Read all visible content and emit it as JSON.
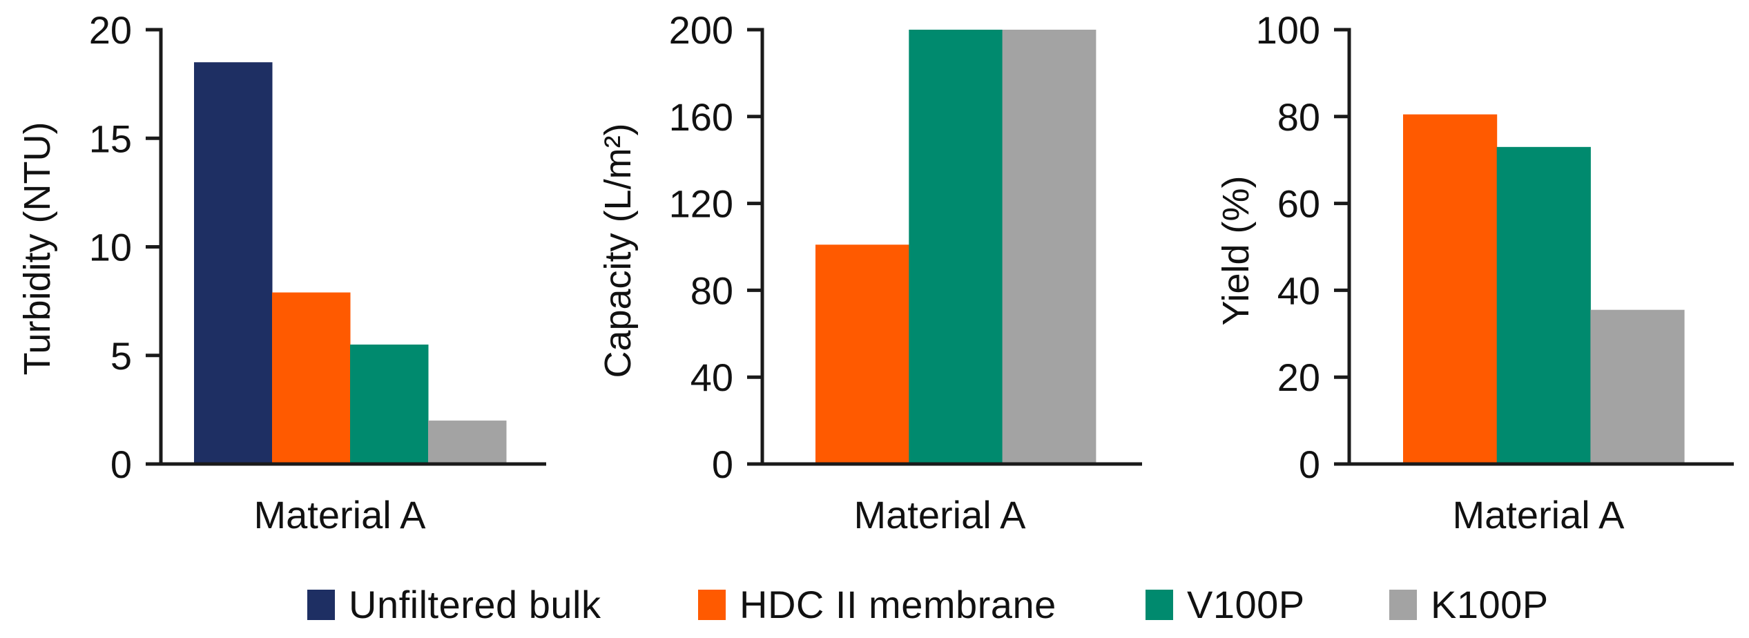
{
  "colors": {
    "unfiltered_bulk": "#1e2f63",
    "hdc_ii_membrane": "#ff5a00",
    "v100p": "#008a6e",
    "k100p": "#a3a3a3",
    "axis": "#1a1a1a"
  },
  "legend": {
    "items": [
      {
        "label": "Unfiltered bulk",
        "color": "#1e2f63"
      },
      {
        "label": "HDC II membrane",
        "color": "#ff5a00"
      },
      {
        "label": "V100P",
        "color": "#008a6e"
      },
      {
        "label": "K100P",
        "color": "#a3a3a3"
      }
    ]
  },
  "chart_data": [
    {
      "type": "bar",
      "title": "",
      "ylabel": "Turbidity (NTU)",
      "xlabel": "",
      "categories": [
        "Material A"
      ],
      "ylim": [
        0,
        20
      ],
      "yticks": [
        0,
        5,
        10,
        15,
        20
      ],
      "grid": false,
      "legend_position": "bottom",
      "series": [
        {
          "name": "Unfiltered bulk",
          "values": [
            18.5
          ]
        },
        {
          "name": "HDC II membrane",
          "values": [
            7.9
          ]
        },
        {
          "name": "V100P",
          "values": [
            5.5
          ]
        },
        {
          "name": "K100P",
          "values": [
            2.0
          ]
        }
      ]
    },
    {
      "type": "bar",
      "title": "",
      "ylabel": "Capacity (L/m²)",
      "xlabel": "",
      "categories": [
        "Material A"
      ],
      "ylim": [
        0,
        200
      ],
      "yticks": [
        0,
        40,
        80,
        120,
        160,
        200
      ],
      "grid": false,
      "legend_position": "bottom",
      "series": [
        {
          "name": "HDC II membrane",
          "values": [
            101
          ]
        },
        {
          "name": "V100P",
          "values": [
            200
          ]
        },
        {
          "name": "K100P",
          "values": [
            200
          ]
        }
      ]
    },
    {
      "type": "bar",
      "title": "",
      "ylabel": "Yield (%)",
      "xlabel": "",
      "categories": [
        "Material A"
      ],
      "ylim": [
        0,
        100
      ],
      "yticks": [
        0,
        20,
        40,
        60,
        80,
        100
      ],
      "grid": false,
      "legend_position": "bottom",
      "series": [
        {
          "name": "HDC II membrane",
          "values": [
            80.5
          ]
        },
        {
          "name": "V100P",
          "values": [
            73
          ]
        },
        {
          "name": "K100P",
          "values": [
            35.5
          ]
        }
      ]
    }
  ]
}
